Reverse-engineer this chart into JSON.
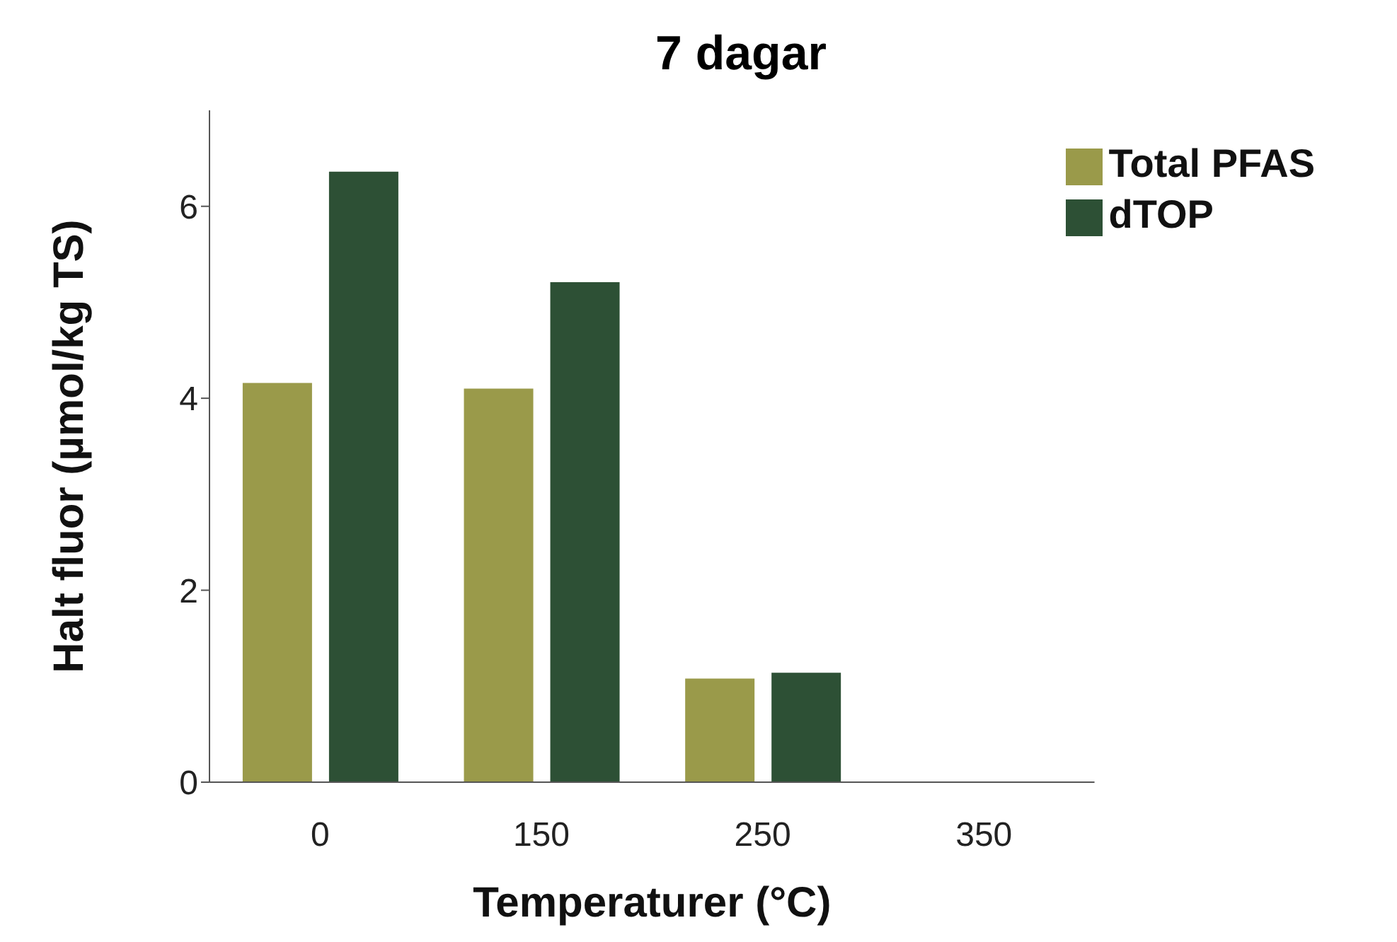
{
  "chart_data": {
    "type": "bar",
    "title": "7 dagar",
    "xlabel": "Temperaturer (°C)",
    "ylabel": "Halt fluor (µmol/kg TS)",
    "categories": [
      "0",
      "150",
      "250",
      "350"
    ],
    "series": [
      {
        "name": "Total PFAS",
        "color": "#9a9a4a",
        "values": [
          4.16,
          4.1,
          1.08,
          null
        ]
      },
      {
        "name": "dTOP",
        "color": "#2d5035",
        "values": [
          6.36,
          5.21,
          1.14,
          null
        ]
      }
    ],
    "ylim": [
      0,
      7
    ],
    "yticks": [
      0,
      2,
      4,
      6
    ],
    "grid": false,
    "legend": "top right"
  }
}
